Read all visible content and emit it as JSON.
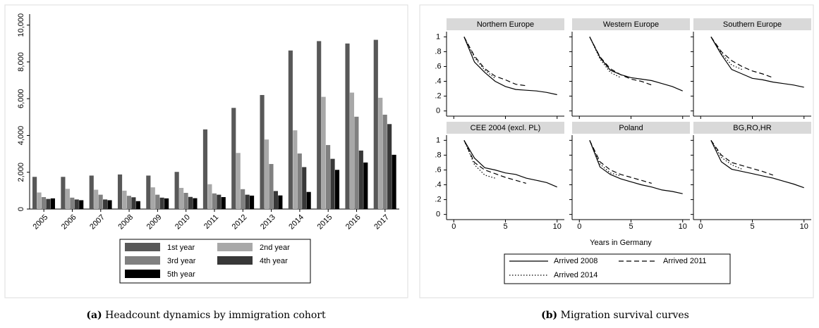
{
  "chart_data": [
    {
      "type": "bar",
      "categories": [
        "2005",
        "2006",
        "2007",
        "2008",
        "2009",
        "2010",
        "2011",
        "2012",
        "2013",
        "2014",
        "2015",
        "2016",
        "2017"
      ],
      "series": [
        {
          "name": "1st year",
          "color": "#585858",
          "values": [
            1750,
            1750,
            1820,
            1880,
            1820,
            2020,
            4330,
            5500,
            6200,
            8620,
            9130,
            9000,
            9200
          ]
        },
        {
          "name": "2nd year",
          "color": "#a8a8a8",
          "values": [
            900,
            1100,
            1050,
            1000,
            1180,
            1150,
            1350,
            3050,
            3780,
            4280,
            6100,
            6330,
            6050
          ]
        },
        {
          "name": "3rd year",
          "color": "#808080",
          "values": [
            650,
            620,
            780,
            720,
            780,
            880,
            850,
            1080,
            2450,
            3020,
            3480,
            5020,
            5130
          ]
        },
        {
          "name": "4th year",
          "color": "#383838",
          "values": [
            550,
            520,
            520,
            640,
            620,
            660,
            780,
            780,
            980,
            2280,
            2730,
            3180,
            4620
          ]
        },
        {
          "name": "5th year",
          "color": "#000000",
          "values": [
            580,
            480,
            480,
            430,
            580,
            590,
            650,
            730,
            740,
            930,
            2130,
            2530,
            2950
          ]
        }
      ],
      "ylim": [
        0,
        10600
      ],
      "yticks": [
        0,
        {
          "value": 2000,
          "label": "2,000"
        },
        {
          "value": 4000,
          "label": "4,000"
        },
        {
          "value": 6000,
          "label": "6,000"
        },
        {
          "value": 8000,
          "label": "8,000"
        },
        {
          "value": 10000,
          "label": "10,000"
        }
      ],
      "legend": "bottom",
      "caption_label": "(a)",
      "caption": "Headcount dynamics by immigration cohort"
    },
    {
      "type": "line",
      "x": [
        1,
        2,
        3,
        4,
        5,
        6,
        7,
        8,
        9,
        10
      ],
      "xlim": [
        -0.7,
        10.7
      ],
      "xticks": [
        0,
        5,
        10
      ],
      "ylim": [
        -0.07,
        1.07
      ],
      "yticks": [
        0,
        {
          "value": 0.2,
          "label": ".2"
        },
        {
          "value": 0.4,
          "label": ".4"
        },
        {
          "value": 0.6,
          "label": ".6"
        },
        {
          "value": 0.8,
          "label": ".8"
        },
        1
      ],
      "xlabel": "Years in Germany",
      "series": [
        {
          "name": "Arrived 2008",
          "color": "#000000",
          "style": "solid"
        },
        {
          "name": "Arrived 2011",
          "color": "#000000",
          "style": "dashed"
        },
        {
          "name": "Arrived 2014",
          "color": "#000000",
          "style": "dotted"
        }
      ],
      "panels": [
        {
          "title": "Northern Europe",
          "values": [
            [
              1,
              0.66,
              0.52,
              0.4,
              0.33,
              0.29,
              0.28,
              0.27,
              0.25,
              0.22
            ],
            [
              1,
              0.74,
              0.57,
              0.47,
              0.42,
              0.36,
              0.34,
              null,
              null,
              null
            ],
            [
              1,
              0.72,
              0.55,
              0.44,
              null,
              null,
              null,
              null,
              null,
              null
            ]
          ]
        },
        {
          "title": "Western Europe",
          "values": [
            [
              1,
              0.72,
              0.55,
              0.49,
              0.45,
              0.43,
              0.41,
              0.37,
              0.33,
              0.27
            ],
            [
              1,
              0.73,
              0.57,
              0.49,
              0.43,
              0.4,
              0.35,
              null,
              null,
              null
            ],
            [
              1,
              0.7,
              0.52,
              0.45,
              null,
              null,
              null,
              null,
              null,
              null
            ]
          ]
        },
        {
          "title": "Southern Europe",
          "values": [
            [
              1,
              0.76,
              0.56,
              0.5,
              0.44,
              0.42,
              0.39,
              0.37,
              0.35,
              0.32
            ],
            [
              1,
              0.8,
              0.68,
              0.6,
              0.54,
              0.5,
              0.45,
              null,
              null,
              null
            ],
            [
              1,
              0.78,
              0.62,
              0.56,
              null,
              null,
              null,
              null,
              null,
              null
            ]
          ]
        },
        {
          "title": "CEE 2004 (excl. PL)",
          "values": [
            [
              1,
              0.76,
              0.63,
              0.6,
              0.56,
              0.54,
              0.49,
              0.46,
              0.43,
              0.37
            ],
            [
              1,
              0.7,
              0.6,
              0.55,
              0.5,
              0.46,
              0.42,
              null,
              null,
              null
            ],
            [
              1,
              0.67,
              0.53,
              0.49,
              null,
              null,
              null,
              null,
              null,
              null
            ]
          ]
        },
        {
          "title": "Poland",
          "values": [
            [
              1,
              0.64,
              0.54,
              0.48,
              0.44,
              0.4,
              0.37,
              0.33,
              0.31,
              0.28
            ],
            [
              1,
              0.71,
              0.6,
              0.54,
              0.5,
              0.46,
              0.42,
              null,
              null,
              null
            ],
            [
              1,
              0.68,
              0.56,
              0.52,
              null,
              null,
              null,
              null,
              null,
              null
            ]
          ]
        },
        {
          "title": "BG,RO,HR",
          "values": [
            [
              1,
              0.71,
              0.61,
              0.58,
              0.55,
              0.52,
              0.49,
              0.45,
              0.41,
              0.36
            ],
            [
              1,
              0.8,
              0.7,
              0.66,
              0.62,
              0.58,
              0.53,
              null,
              null,
              null
            ],
            [
              1,
              0.77,
              0.67,
              0.61,
              null,
              null,
              null,
              null,
              null,
              null
            ]
          ]
        }
      ],
      "legend": "bottom",
      "caption_label": "(b)",
      "caption": "Migration survival curves"
    }
  ]
}
